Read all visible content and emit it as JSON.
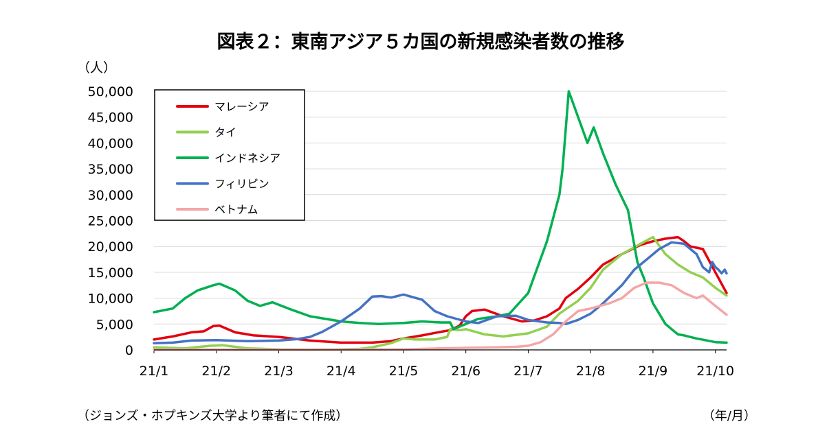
{
  "chart_data": {
    "type": "line",
    "title": "図表２：東南アジア５カ国の新規感染者数の推移",
    "ylabel": "（人）",
    "xunit": "（年/月）",
    "source": "（ジョンズ・ホプキンズ大学より筆者にて作成）",
    "ylim": [
      0,
      50000
    ],
    "yticks": [
      "0",
      "5,000",
      "10,000",
      "15,000",
      "20,000",
      "25,000",
      "30,000",
      "35,000",
      "40,000",
      "45,000",
      "50,000"
    ],
    "ytick_values": [
      0,
      5000,
      10000,
      15000,
      20000,
      25000,
      30000,
      35000,
      40000,
      45000,
      50000
    ],
    "xlim": [
      0,
      9.18
    ],
    "xticks": [
      "21/1",
      "21/2",
      "21/3",
      "21/4",
      "21/5",
      "21/6",
      "21/7",
      "21/8",
      "21/9",
      "21/10"
    ],
    "grid": true,
    "legend_position": "top-left",
    "series": [
      {
        "name": "マレーシア",
        "color": "#e3000f",
        "x": [
          0,
          0.3,
          0.6,
          0.8,
          0.95,
          1.05,
          1.3,
          1.6,
          2.0,
          2.5,
          3.0,
          3.5,
          3.8,
          4.0,
          4.3,
          4.6,
          4.75,
          4.9,
          5.0,
          5.1,
          5.3,
          5.6,
          5.9,
          6.1,
          6.3,
          6.5,
          6.6,
          6.8,
          7.0,
          7.2,
          7.5,
          7.8,
          8.0,
          8.2,
          8.4,
          8.5,
          8.6,
          8.8,
          9.0,
          9.18
        ],
        "y": [
          2000,
          2600,
          3400,
          3600,
          4600,
          4700,
          3400,
          2800,
          2500,
          1800,
          1400,
          1400,
          1700,
          2200,
          2800,
          3500,
          3800,
          4700,
          6500,
          7500,
          7800,
          6500,
          5500,
          5700,
          6500,
          8000,
          10000,
          11800,
          14000,
          16500,
          18500,
          20300,
          21000,
          21500,
          21800,
          21000,
          20000,
          19500,
          15000,
          11000
        ]
      },
      {
        "name": "タイ",
        "color": "#92d050",
        "x": [
          0,
          0.5,
          0.9,
          1.1,
          1.5,
          2.0,
          2.5,
          3.0,
          3.3,
          3.5,
          3.8,
          4.0,
          4.2,
          4.5,
          4.7,
          4.75,
          4.9,
          5.0,
          5.3,
          5.6,
          6.0,
          6.3,
          6.5,
          6.8,
          7.0,
          7.2,
          7.5,
          7.8,
          8.0,
          8.2,
          8.4,
          8.6,
          8.8,
          9.0,
          9.18
        ],
        "y": [
          500,
          300,
          800,
          900,
          300,
          100,
          50,
          100,
          200,
          500,
          1300,
          2200,
          2000,
          2000,
          2500,
          4000,
          3800,
          4000,
          3000,
          2600,
          3200,
          4500,
          7000,
          9500,
          12000,
          15500,
          18500,
          20500,
          21800,
          18500,
          16500,
          15000,
          14000,
          12000,
          10500
        ]
      },
      {
        "name": "インドネシア",
        "color": "#00b050",
        "x": [
          0,
          0.3,
          0.5,
          0.7,
          0.95,
          1.05,
          1.3,
          1.5,
          1.7,
          1.9,
          2.2,
          2.5,
          3.0,
          3.3,
          3.6,
          4.0,
          4.3,
          4.6,
          4.75,
          4.8,
          5.0,
          5.2,
          5.5,
          5.7,
          6.0,
          6.3,
          6.5,
          6.55,
          6.65,
          6.8,
          6.95,
          7.05,
          7.2,
          7.4,
          7.6,
          7.75,
          7.85,
          8.0,
          8.2,
          8.4,
          8.5,
          8.7,
          9.0,
          9.18
        ],
        "y": [
          7300,
          8000,
          10000,
          11500,
          12500,
          12800,
          11500,
          9500,
          8500,
          9200,
          7800,
          6500,
          5500,
          5200,
          5000,
          5200,
          5500,
          5300,
          5300,
          4000,
          5000,
          6000,
          6500,
          7000,
          11000,
          21000,
          30000,
          35000,
          50000,
          45000,
          40000,
          43000,
          38000,
          32000,
          27000,
          17000,
          14000,
          9000,
          5000,
          3000,
          2800,
          2200,
          1500,
          1400
        ]
      },
      {
        "name": "フィリピン",
        "color": "#4472c4",
        "x": [
          0,
          0.3,
          0.6,
          1.0,
          1.5,
          2.0,
          2.3,
          2.5,
          2.7,
          3.0,
          3.3,
          3.5,
          3.65,
          3.8,
          4.0,
          4.3,
          4.5,
          4.7,
          5.0,
          5.2,
          5.5,
          5.8,
          6.0,
          6.3,
          6.5,
          6.6,
          6.8,
          7.0,
          7.2,
          7.5,
          7.7,
          7.9,
          8.1,
          8.3,
          8.5,
          8.6,
          8.7,
          8.8,
          8.9,
          8.95,
          9.0,
          9.05,
          9.1,
          9.15,
          9.18
        ],
        "y": [
          1300,
          1400,
          1800,
          1900,
          1700,
          1800,
          2100,
          2500,
          3500,
          5500,
          8000,
          10300,
          10400,
          10100,
          10700,
          9700,
          7500,
          6500,
          5500,
          5200,
          6500,
          6600,
          5800,
          5300,
          5200,
          5000,
          5800,
          7000,
          9000,
          12500,
          15500,
          17500,
          19500,
          20800,
          20500,
          19500,
          18500,
          16000,
          15000,
          17000,
          16000,
          15500,
          14800,
          15500,
          14800
        ]
      },
      {
        "name": "ベトナム",
        "color": "#f4a6a6",
        "x": [
          0,
          1.0,
          2.0,
          3.0,
          3.5,
          4.0,
          4.3,
          4.6,
          5.0,
          5.5,
          5.8,
          6.0,
          6.2,
          6.4,
          6.6,
          6.8,
          7.0,
          7.3,
          7.5,
          7.6,
          7.7,
          7.9,
          8.1,
          8.3,
          8.5,
          8.7,
          8.8,
          9.0,
          9.18
        ],
        "y": [
          50,
          50,
          50,
          50,
          100,
          100,
          200,
          300,
          400,
          500,
          600,
          800,
          1500,
          3000,
          5500,
          7500,
          8000,
          9000,
          10000,
          11000,
          12000,
          13000,
          13000,
          12500,
          11000,
          10000,
          10500,
          8500,
          6800
        ]
      }
    ]
  }
}
